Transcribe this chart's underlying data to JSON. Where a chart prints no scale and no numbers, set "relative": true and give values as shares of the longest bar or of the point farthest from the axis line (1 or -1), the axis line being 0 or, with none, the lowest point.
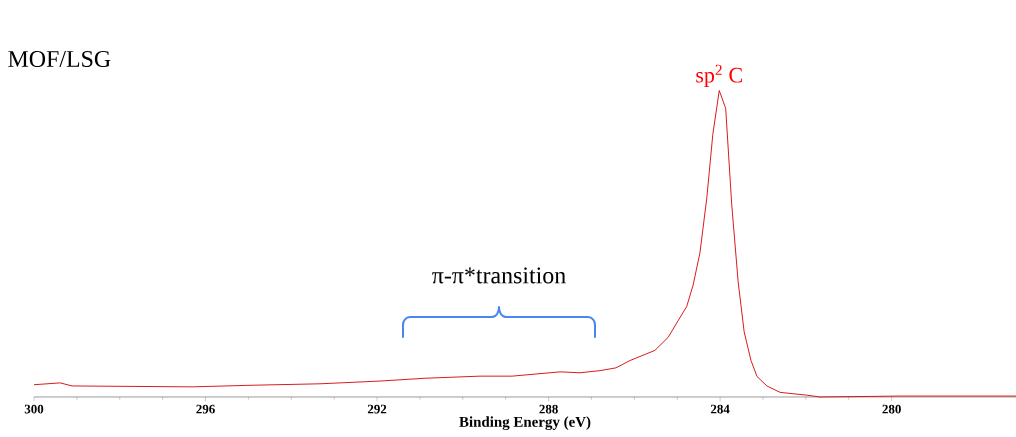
{
  "chart_data": {
    "type": "line",
    "title": "MOF/LSG",
    "xlabel": "Binding Energy (eV)",
    "relative": true,
    "xlim": [
      300,
      277.1
    ],
    "xticks": [
      300,
      296,
      292,
      288,
      284,
      280
    ],
    "series": [
      {
        "color": "#d40000",
        "x": [
          300,
          299.39,
          299.11,
          296.31,
          295.01,
          293.33,
          291.93,
          290.9,
          289.6,
          288.85,
          287.73,
          287.27,
          286.8,
          286.43,
          286.1,
          285.52,
          285.21,
          284.98,
          284.78,
          284.63,
          284.47,
          284.31,
          284.17,
          284.02,
          283.87,
          283.73,
          283.58,
          283.44,
          283.28,
          283.14,
          282.91,
          282.6,
          281.98,
          281.67,
          279.8,
          277.1
        ],
        "values": [
          0.04,
          0.046,
          0.036,
          0.033,
          0.038,
          0.043,
          0.052,
          0.061,
          0.068,
          0.068,
          0.082,
          0.079,
          0.086,
          0.095,
          0.119,
          0.152,
          0.195,
          0.249,
          0.295,
          0.365,
          0.471,
          0.65,
          0.857,
          1,
          0.942,
          0.629,
          0.377,
          0.213,
          0.119,
          0.067,
          0.036,
          0.015,
          0.006,
          0,
          0.003,
          0.003
        ]
      }
    ],
    "annotations": [
      {
        "text": "sp$^{2}$ C",
        "x": 284.02,
        "y": 1
      },
      "π-π*transition"
    ],
    "marker": "none",
    "line_style": "solid"
  }
}
